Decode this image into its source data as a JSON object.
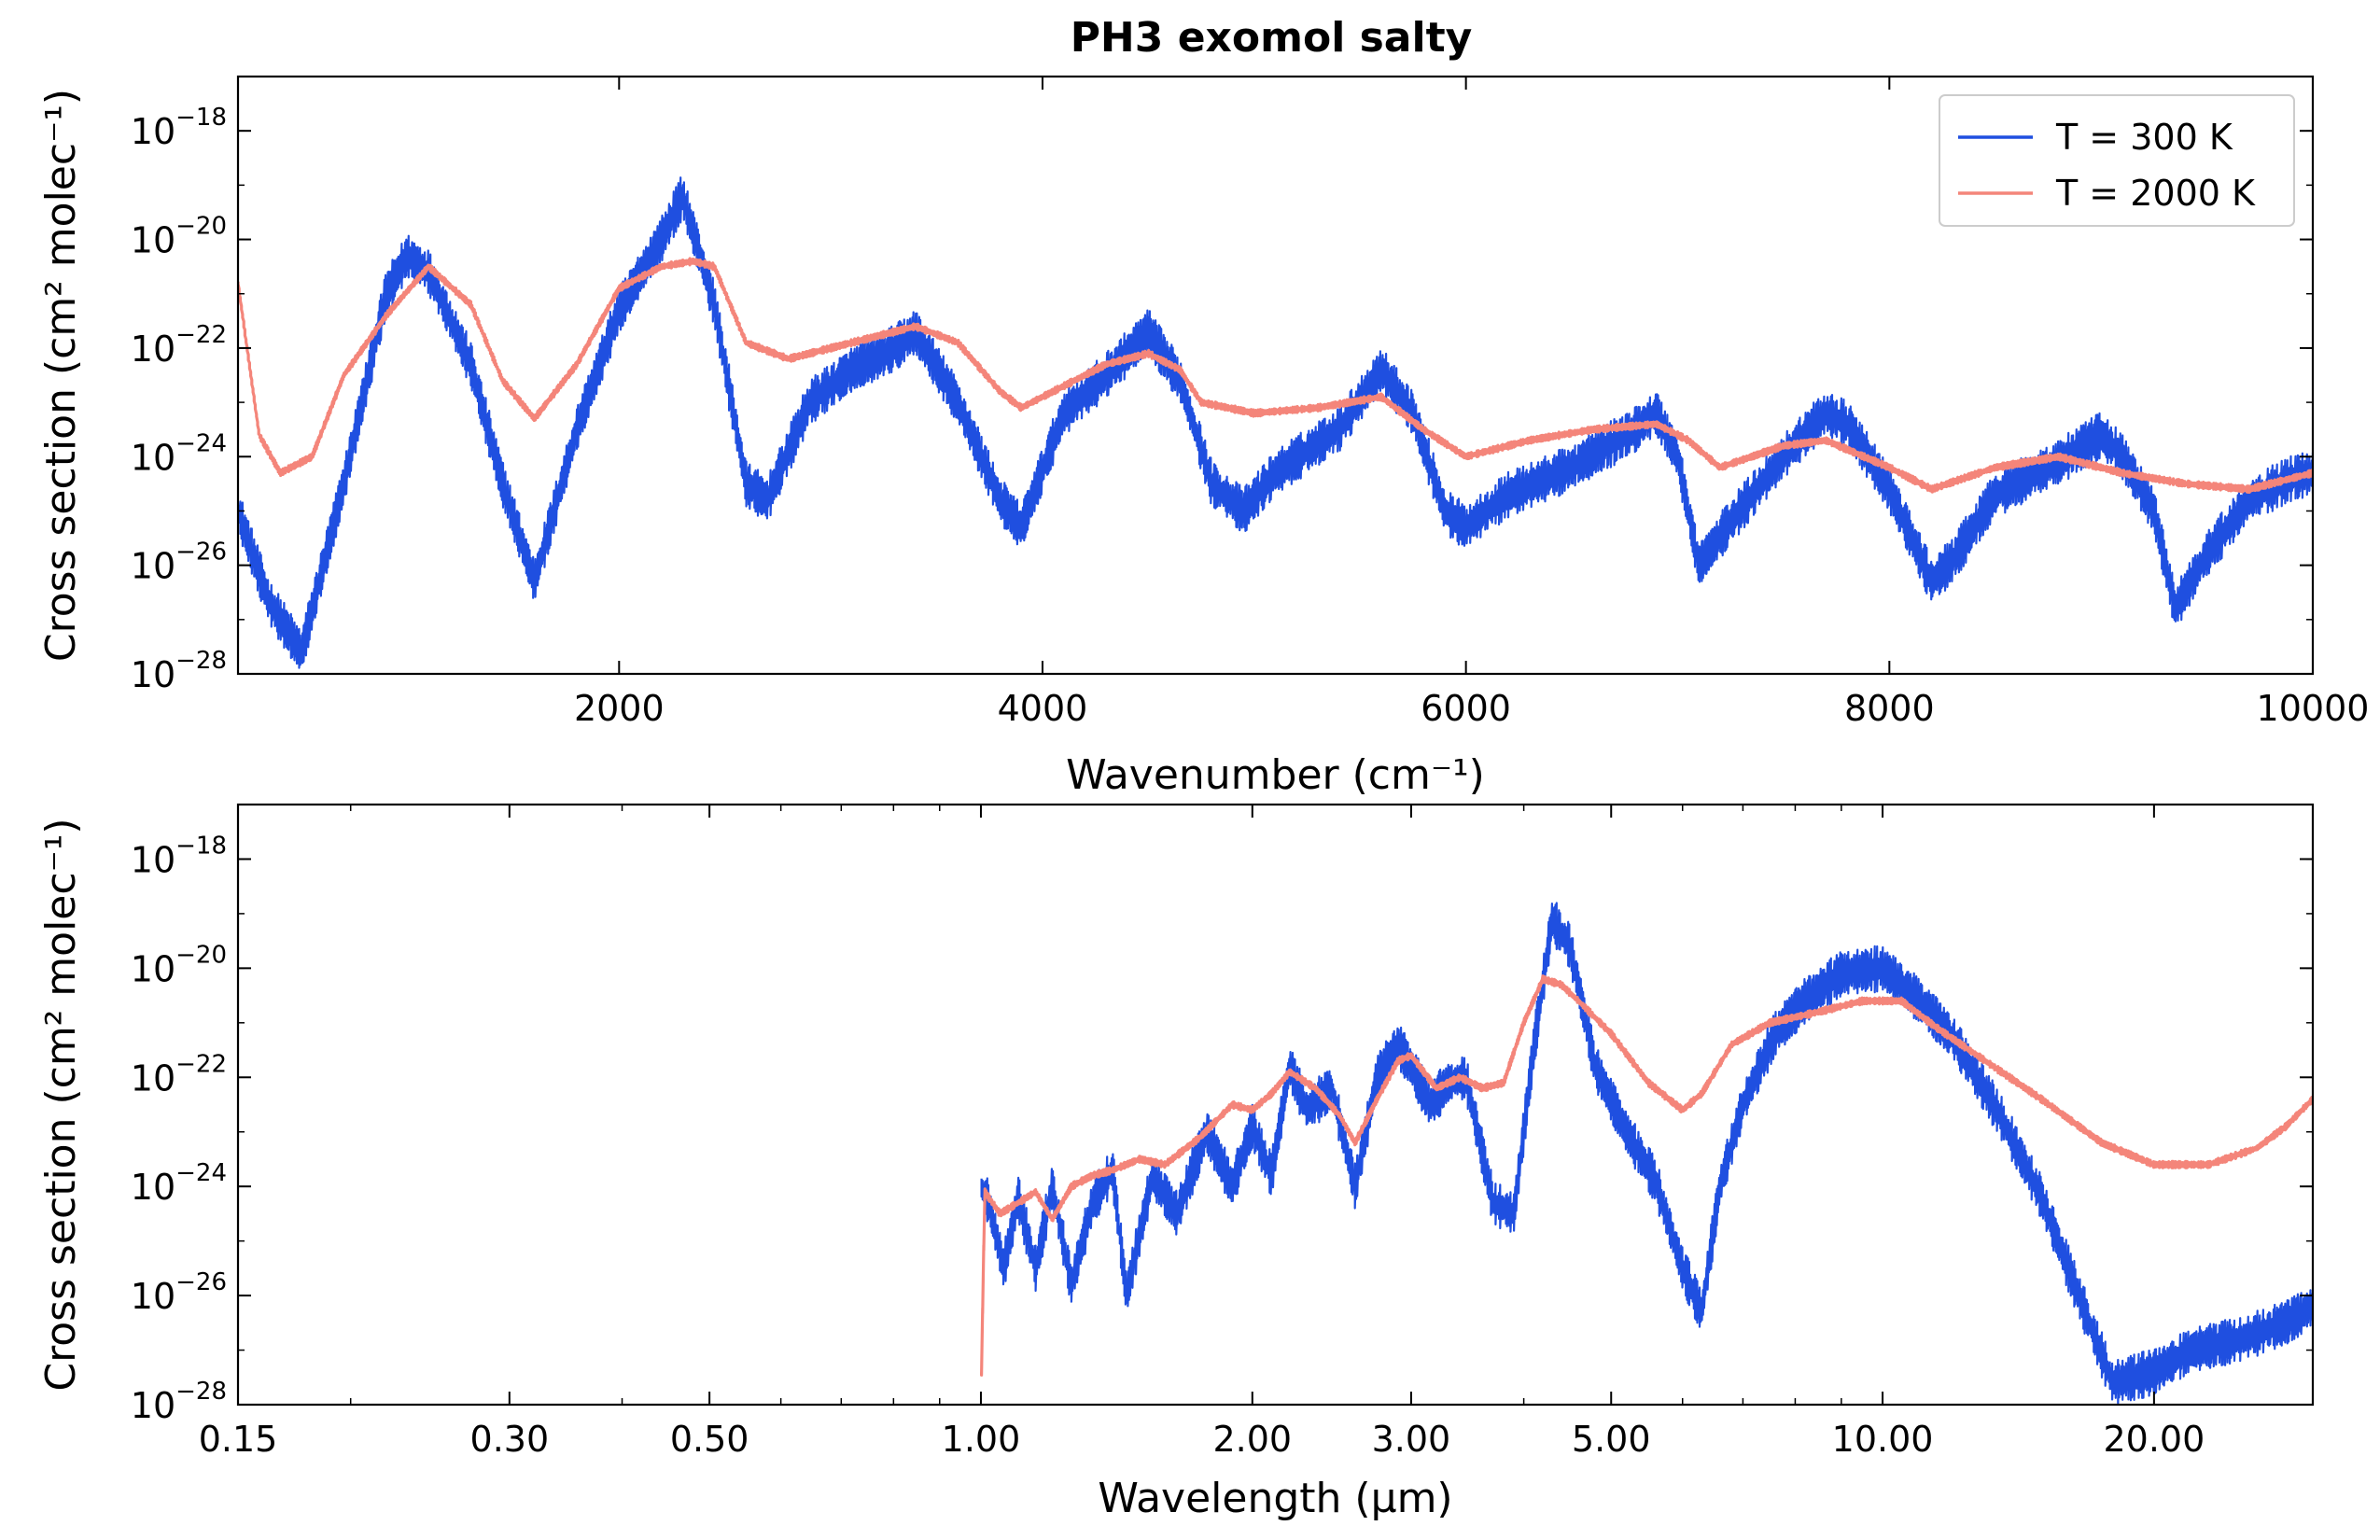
{
  "figure": {
    "title": "PH3 exomol salty"
  },
  "chart_data": [
    {
      "type": "line",
      "title": "PH3 exomol salty",
      "xlabel": "Wavenumber (cm⁻¹)",
      "ylabel": "Cross section (cm² molec⁻¹)",
      "xscale": "linear",
      "yscale": "log",
      "xlim": [
        200,
        10000
      ],
      "ylim": [
        1e-28,
        1e-17
      ],
      "xticks": [
        2000,
        4000,
        6000,
        8000,
        10000
      ],
      "xtick_labels": [
        "2000",
        "4000",
        "6000",
        "8000",
        "10000"
      ],
      "yticks": [
        1e-28,
        1e-26,
        1e-24,
        1e-22,
        1e-20,
        1e-18
      ],
      "ytick_labels": [
        {
          "base": "10",
          "exp": "−28"
        },
        {
          "base": "10",
          "exp": "−26"
        },
        {
          "base": "10",
          "exp": "−24"
        },
        {
          "base": "10",
          "exp": "−22"
        },
        {
          "base": "10",
          "exp": "−20"
        },
        {
          "base": "10",
          "exp": "−18"
        }
      ],
      "grid": false,
      "legend": "top-right",
      "series": [
        {
          "name": "T = 300 K",
          "color": "#1f4fe0",
          "noise_dex": 0.85,
          "x": [
            200,
            350,
            500,
            700,
            900,
            1000,
            1100,
            1300,
            1450,
            1600,
            1800,
            2000,
            2200,
            2300,
            2450,
            2600,
            2700,
            2900,
            3100,
            3300,
            3400,
            3600,
            3800,
            3900,
            4100,
            4300,
            4500,
            4650,
            4800,
            4950,
            5100,
            5400,
            5600,
            5750,
            5900,
            6000,
            6200,
            6500,
            6800,
            6900,
            7000,
            7100,
            7250,
            7500,
            7700,
            7800,
            8000,
            8200,
            8300,
            8500,
            8800,
            9000,
            9100,
            9250,
            9350,
            9500,
            9700,
            9900,
            10000
          ],
          "y": [
            -25.0,
            -26.7,
            -27.6,
            -24.5,
            -21.0,
            -20.3,
            -20.6,
            -22.3,
            -24.5,
            -26.3,
            -23.5,
            -21.3,
            -20.0,
            -19.2,
            -21.2,
            -24.5,
            -24.8,
            -23.0,
            -22.4,
            -22.0,
            -21.7,
            -23.0,
            -24.8,
            -25.3,
            -23.2,
            -22.5,
            -21.7,
            -22.6,
            -24.5,
            -25.0,
            -24.3,
            -23.5,
            -22.4,
            -23.2,
            -25.0,
            -25.3,
            -24.7,
            -24.2,
            -23.5,
            -23.2,
            -24.0,
            -26.0,
            -25.2,
            -24.0,
            -23.2,
            -23.4,
            -24.6,
            -26.3,
            -25.9,
            -24.7,
            -24.1,
            -23.6,
            -24.0,
            -25.0,
            -26.8,
            -25.8,
            -24.8,
            -24.4,
            -24.3
          ]
        },
        {
          "name": "T = 2000 K",
          "color": "#f4857a",
          "noise_dex": 0.12,
          "x": [
            200,
            300,
            400,
            550,
            700,
            900,
            1100,
            1300,
            1450,
            1600,
            1800,
            2000,
            2200,
            2350,
            2450,
            2600,
            2800,
            3000,
            3200,
            3400,
            3600,
            3800,
            3900,
            4100,
            4300,
            4500,
            4650,
            4750,
            5000,
            5300,
            5600,
            5800,
            6000,
            6300,
            6600,
            6900,
            7050,
            7200,
            7500,
            7700,
            8000,
            8200,
            8500,
            8800,
            9100,
            9400,
            9700,
            10000
          ],
          "y": [
            -20.8,
            -23.6,
            -24.3,
            -24.0,
            -22.5,
            -21.4,
            -20.5,
            -21.2,
            -22.6,
            -23.3,
            -22.3,
            -20.9,
            -20.5,
            -20.4,
            -20.5,
            -21.9,
            -22.2,
            -22.0,
            -21.8,
            -21.6,
            -21.9,
            -22.8,
            -23.1,
            -22.7,
            -22.3,
            -22.1,
            -22.4,
            -23.0,
            -23.2,
            -23.1,
            -22.9,
            -23.5,
            -24.0,
            -23.7,
            -23.5,
            -23.4,
            -23.7,
            -24.2,
            -23.8,
            -23.7,
            -24.2,
            -24.6,
            -24.2,
            -24.0,
            -24.3,
            -24.5,
            -24.6,
            -24.3
          ]
        }
      ]
    },
    {
      "type": "line",
      "xlabel": "Wavelength (µm)",
      "ylabel": "Cross section (cm² molec⁻¹)",
      "xscale": "log",
      "yscale": "log",
      "xlim": [
        0.15,
        30
      ],
      "ylim": [
        1e-28,
        1e-17
      ],
      "xticks": [
        0.15,
        0.3,
        0.5,
        1.0,
        2.0,
        3.0,
        5.0,
        10.0,
        20.0
      ],
      "xtick_labels": [
        "0.15",
        "0.30",
        "0.50",
        "1.00",
        "2.00",
        "3.00",
        "5.00",
        "10.00",
        "20.00"
      ],
      "yticks": [
        1e-28,
        1e-26,
        1e-24,
        1e-22,
        1e-20,
        1e-18
      ],
      "ytick_labels": [
        {
          "base": "10",
          "exp": "−28"
        },
        {
          "base": "10",
          "exp": "−26"
        },
        {
          "base": "10",
          "exp": "−24"
        },
        {
          "base": "10",
          "exp": "−22"
        },
        {
          "base": "10",
          "exp": "−20"
        },
        {
          "base": "10",
          "exp": "−18"
        }
      ],
      "grid": false,
      "series": [
        {
          "name": "T = 300 K",
          "color": "#1f4fe0",
          "noise_dex": 0.85,
          "x": [
            1.0,
            1.02,
            1.06,
            1.1,
            1.15,
            1.2,
            1.26,
            1.33,
            1.4,
            1.45,
            1.55,
            1.65,
            1.78,
            1.9,
            2.0,
            2.1,
            2.2,
            2.3,
            2.45,
            2.6,
            2.75,
            2.9,
            3.0,
            3.15,
            3.3,
            3.45,
            3.7,
            3.9,
            4.1,
            4.3,
            4.5,
            4.8,
            5.2,
            5.6,
            6.0,
            6.3,
            6.6,
            7.0,
            7.6,
            8.2,
            9.0,
            10.0,
            11.0,
            12.0,
            13.5,
            15.0,
            16.5,
            18.0,
            20.0,
            22.0,
            25.0,
            28.0,
            30.0
          ],
          "y": [
            -24.0,
            -24.3,
            -25.5,
            -24.2,
            -25.5,
            -24.0,
            -25.8,
            -24.3,
            -23.7,
            -26.0,
            -23.8,
            -24.5,
            -23.0,
            -24.0,
            -22.9,
            -23.8,
            -21.8,
            -22.6,
            -22.2,
            -24.0,
            -22.0,
            -21.4,
            -21.8,
            -22.5,
            -22.1,
            -22.0,
            -24.3,
            -24.5,
            -21.5,
            -19.1,
            -19.6,
            -21.8,
            -23.0,
            -23.9,
            -25.5,
            -26.3,
            -24.0,
            -22.5,
            -21.2,
            -20.6,
            -20.1,
            -20.0,
            -20.6,
            -21.3,
            -22.7,
            -24.2,
            -26.0,
            -27.6,
            -27.4,
            -27.0,
            -26.8,
            -26.5,
            -26.2
          ]
        },
        {
          "name": "T = 2000 K",
          "color": "#f4857a",
          "noise_dex": 0.12,
          "x": [
            1.0,
            1.01,
            1.05,
            1.1,
            1.15,
            1.2,
            1.26,
            1.33,
            1.4,
            1.5,
            1.6,
            1.75,
            1.9,
            2.0,
            2.1,
            2.2,
            2.35,
            2.5,
            2.6,
            2.75,
            2.9,
            3.0,
            3.2,
            3.4,
            3.6,
            3.8,
            4.0,
            4.2,
            4.4,
            4.6,
            5.0,
            5.5,
            6.0,
            6.3,
            6.8,
            7.5,
            8.5,
            9.5,
            10.5,
            11.5,
            13.0,
            15.0,
            17.5,
            20.0,
            23.0,
            26.0,
            28.0,
            30.0
          ],
          "y": [
            -28.0,
            -24.1,
            -24.5,
            -24.3,
            -24.1,
            -24.6,
            -24.0,
            -23.8,
            -23.7,
            -23.5,
            -23.6,
            -23.1,
            -22.5,
            -22.6,
            -22.3,
            -21.9,
            -22.2,
            -22.7,
            -23.2,
            -22.4,
            -21.7,
            -21.6,
            -22.2,
            -22.0,
            -22.2,
            -22.1,
            -21.0,
            -20.2,
            -20.3,
            -20.6,
            -21.2,
            -22.1,
            -22.6,
            -22.3,
            -21.4,
            -21.0,
            -20.8,
            -20.6,
            -20.6,
            -21.1,
            -21.7,
            -22.4,
            -23.2,
            -23.6,
            -23.6,
            -23.3,
            -22.9,
            -22.4
          ]
        }
      ]
    }
  ]
}
